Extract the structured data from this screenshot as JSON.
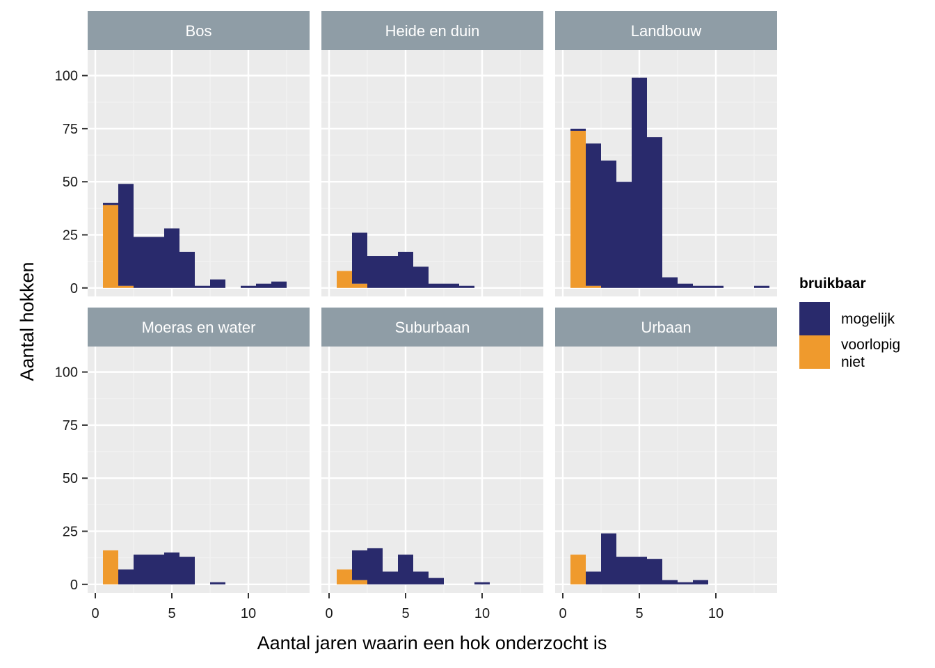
{
  "chart_data": {
    "type": "bar",
    "subtype": "faceted-histogram",
    "xlabel": "Aantal jaren waarin een hok onderzocht is",
    "ylabel": "Aantal hokken",
    "xlim": [
      -0.5,
      14.0
    ],
    "ylim": [
      -4,
      112
    ],
    "x_ticks": [
      0,
      5,
      10
    ],
    "y_ticks": [
      0,
      25,
      50,
      75,
      100
    ],
    "grid": true,
    "legend": {
      "title": "bruikbaar",
      "position": "right",
      "entries": [
        {
          "label": [
            "mogelijk"
          ],
          "color": "#292A6C"
        },
        {
          "label": [
            "voorlopig",
            "niet"
          ],
          "color": "#EF9A2D"
        }
      ]
    },
    "bin_width": 1,
    "colors": {
      "mogelijk": "#292A6C",
      "voorlopig niet": "#EF9A2D"
    },
    "panels": [
      {
        "title": "Bos",
        "mogelijk": [
          [
            1,
            1
          ],
          [
            2,
            48
          ],
          [
            3,
            24
          ],
          [
            4,
            24
          ],
          [
            5,
            28
          ],
          [
            6,
            17
          ],
          [
            7,
            1
          ],
          [
            8,
            4
          ],
          [
            10,
            1
          ],
          [
            11,
            2
          ],
          [
            12,
            3
          ]
        ],
        "voorlopig niet": [
          [
            1,
            39
          ],
          [
            2,
            1
          ]
        ]
      },
      {
        "title": "Heide en duin",
        "mogelijk": [
          [
            2,
            24
          ],
          [
            3,
            15
          ],
          [
            4,
            15
          ],
          [
            5,
            17
          ],
          [
            6,
            10
          ],
          [
            7,
            2
          ],
          [
            8,
            2
          ],
          [
            9,
            1
          ]
        ],
        "voorlopig niet": [
          [
            1,
            8
          ],
          [
            2,
            2
          ]
        ]
      },
      {
        "title": "Landbouw",
        "mogelijk": [
          [
            1,
            1
          ],
          [
            2,
            67
          ],
          [
            3,
            60
          ],
          [
            4,
            50
          ],
          [
            5,
            99
          ],
          [
            6,
            71
          ],
          [
            7,
            5
          ],
          [
            8,
            2
          ],
          [
            9,
            1
          ],
          [
            10,
            1
          ],
          [
            13,
            1
          ]
        ],
        "voorlopig niet": [
          [
            1,
            74
          ],
          [
            2,
            1
          ]
        ]
      },
      {
        "title": "Moeras en water",
        "mogelijk": [
          [
            2,
            7
          ],
          [
            3,
            14
          ],
          [
            4,
            14
          ],
          [
            5,
            15
          ],
          [
            6,
            13
          ],
          [
            8,
            1
          ]
        ],
        "voorlopig niet": [
          [
            1,
            16
          ]
        ]
      },
      {
        "title": "Suburbaan",
        "mogelijk": [
          [
            2,
            14
          ],
          [
            3,
            17
          ],
          [
            4,
            6
          ],
          [
            5,
            14
          ],
          [
            6,
            6
          ],
          [
            7,
            3
          ],
          [
            10,
            1
          ]
        ],
        "voorlopig niet": [
          [
            1,
            7
          ],
          [
            2,
            2
          ]
        ]
      },
      {
        "title": "Urbaan",
        "mogelijk": [
          [
            2,
            6
          ],
          [
            3,
            24
          ],
          [
            4,
            13
          ],
          [
            5,
            13
          ],
          [
            6,
            12
          ],
          [
            7,
            2
          ],
          [
            8,
            1
          ],
          [
            9,
            2
          ]
        ],
        "voorlopig niet": [
          [
            1,
            14
          ]
        ]
      }
    ]
  }
}
